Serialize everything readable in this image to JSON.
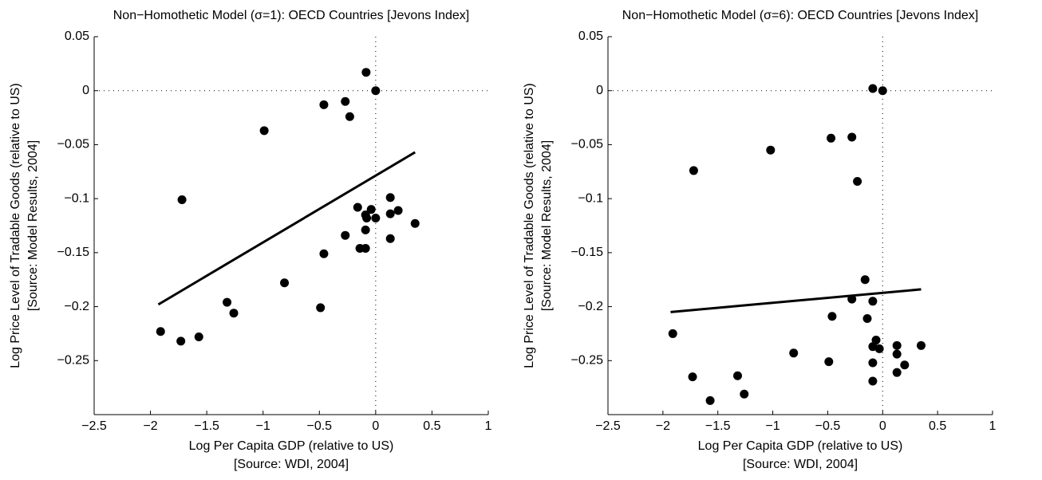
{
  "chart_data": [
    {
      "type": "scatter",
      "title": "Non−Homothetic Model (σ=1): OECD Countries [Jevons Index]",
      "x_label": [
        "Log Per Capita GDP (relative to US)",
        "[Source: WDI, 2004]"
      ],
      "y_label": [
        "Log Price Level of Tradable Goods (relative to US)",
        "[Source: Model Results, 2004]"
      ],
      "xlim": [
        -2.5,
        1
      ],
      "ylim": [
        -0.3,
        0.05
      ],
      "xticks": [
        {
          "value": -2.5,
          "label": "−2.5"
        },
        {
          "value": -2,
          "label": "−2"
        },
        {
          "value": -1.5,
          "label": "−1.5"
        },
        {
          "value": -1,
          "label": "−1"
        },
        {
          "value": -0.5,
          "label": "−0.5"
        },
        0,
        0.5,
        1
      ],
      "yticks": [
        0.05,
        0,
        {
          "value": -0.05,
          "label": "−0.05"
        },
        {
          "value": -0.1,
          "label": "−0.1"
        },
        {
          "value": -0.15,
          "label": "−0.15"
        },
        {
          "value": -0.2,
          "label": "−0.2"
        },
        {
          "value": -0.25,
          "label": "−0.25"
        }
      ],
      "hline": 0,
      "vline": 0,
      "series": [
        {
          "color": "#000000",
          "x": [
            -0.085,
            0,
            -0.27,
            -0.46,
            -0.23,
            -0.99,
            -1.72,
            0.13,
            -0.04,
            -0.16,
            -0.09,
            0,
            -0.08,
            0.13,
            0.2,
            -0.09,
            -0.27,
            0.35,
            0.13,
            -0.14,
            -0.09,
            -0.46,
            -0.81,
            -1.32,
            -1.26,
            -0.49,
            -1.91,
            -1.73,
            -1.57
          ],
          "values": [
            0.017,
            0,
            -0.01,
            -0.013,
            -0.024,
            -0.037,
            -0.101,
            -0.099,
            -0.11,
            -0.108,
            -0.115,
            -0.118,
            -0.118,
            -0.114,
            -0.111,
            -0.129,
            -0.134,
            -0.123,
            -0.137,
            -0.146,
            -0.146,
            -0.151,
            -0.178,
            -0.196,
            -0.206,
            -0.201,
            -0.223,
            -0.232,
            -0.228
          ]
        }
      ],
      "fit_line": {
        "color": "#000000",
        "x": [
          -1.93,
          0.35
        ],
        "values": [
          -0.198,
          -0.057
        ]
      }
    },
    {
      "type": "scatter",
      "title": "Non−Homothetic Model (σ=6): OECD Countries [Jevons Index]",
      "x_label": [
        "Log Per Capita GDP (relative to US)",
        "[Source: WDI, 2004]"
      ],
      "y_label": [
        "Log Price Level of Tradable Goods (relative to US)",
        "[Source: Model Results, 2004]"
      ],
      "xlim": [
        -2.5,
        1
      ],
      "ylim": [
        -0.3,
        0.05
      ],
      "xticks": [
        {
          "value": -2.5,
          "label": "−2.5"
        },
        {
          "value": -2,
          "label": "−2"
        },
        {
          "value": -1.5,
          "label": "−1.5"
        },
        {
          "value": -1,
          "label": "−1"
        },
        {
          "value": -0.5,
          "label": "−0.5"
        },
        0,
        0.5,
        1
      ],
      "yticks": [
        0.05,
        0,
        {
          "value": -0.05,
          "label": "−0.05"
        },
        {
          "value": -0.1,
          "label": "−0.1"
        },
        {
          "value": -0.15,
          "label": "−0.15"
        },
        {
          "value": -0.2,
          "label": "−0.2"
        },
        {
          "value": -0.25,
          "label": "−0.25"
        }
      ],
      "hline": 0,
      "vline": 0,
      "series": [
        {
          "color": "#000000",
          "x": [
            -0.09,
            0,
            -1.72,
            -1.02,
            -0.47,
            -0.28,
            -0.23,
            -0.16,
            -0.28,
            -0.09,
            -0.14,
            -0.46,
            -1.91,
            -0.06,
            -0.09,
            -0.03,
            0.13,
            0.35,
            0.13,
            -0.81,
            0.2,
            -0.09,
            -0.49,
            0.13,
            -1.73,
            -1.32,
            -0.09,
            -1.26,
            -1.57
          ],
          "values": [
            0.002,
            0,
            -0.074,
            -0.055,
            -0.044,
            -0.043,
            -0.084,
            -0.175,
            -0.193,
            -0.195,
            -0.211,
            -0.209,
            -0.225,
            -0.231,
            -0.237,
            -0.239,
            -0.236,
            -0.236,
            -0.244,
            -0.243,
            -0.254,
            -0.252,
            -0.251,
            -0.261,
            -0.265,
            -0.264,
            -0.269,
            -0.281,
            -0.287
          ]
        }
      ],
      "fit_line": {
        "color": "#000000",
        "x": [
          -1.93,
          0.35
        ],
        "values": [
          -0.205,
          -0.184
        ]
      }
    }
  ]
}
